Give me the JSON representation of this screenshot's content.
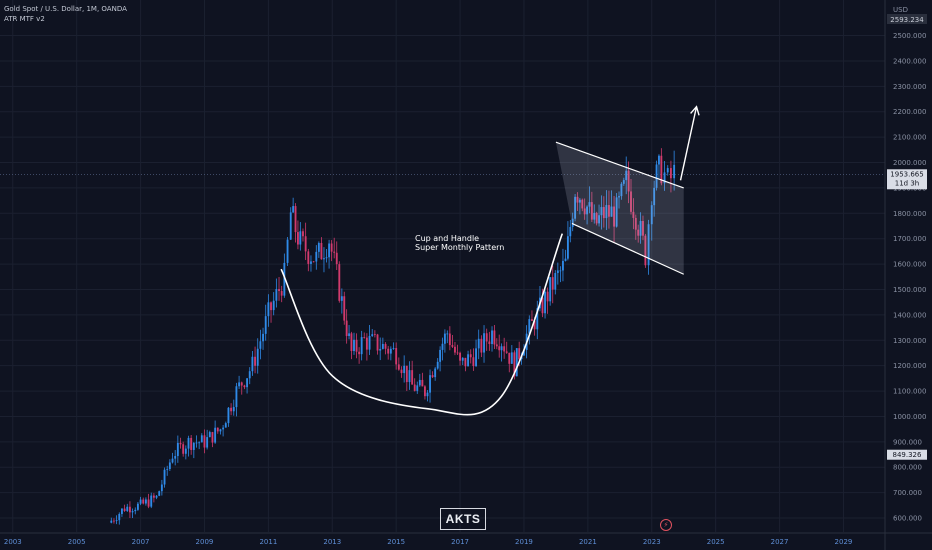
{
  "header": {
    "symbol": "Gold Spot / U.S. Dollar, 1M, OANDA",
    "indicator": "ATR MTF v2"
  },
  "watermark": "AKTS",
  "annotation": [
    "Cup and Handle",
    "Super Monthly Pattern"
  ],
  "price_axis": {
    "currency_label": "USD",
    "top_readout": "2593.234",
    "current_price_label": "1953.665",
    "countdown_label": "11d 3h",
    "lower_readout": "849.326"
  },
  "colors": {
    "background": "#0f1321",
    "bull": "#2f8ae8",
    "bear": "#d23a6d",
    "accent": "#2962ff",
    "axis_text": "#8a91a3",
    "x_ticks": "#5f8fd6"
  },
  "chart_data": {
    "type": "candlestick",
    "title": "Gold Spot / U.S. Dollar, 1M, OANDA",
    "x_ticks": [
      "2003",
      "2005",
      "2007",
      "2009",
      "2011",
      "2013",
      "2015",
      "2017",
      "2019",
      "2021",
      "2023",
      "2025",
      "2027",
      "2029"
    ],
    "y_ticks": [
      600,
      700,
      800,
      900,
      1000,
      1100,
      1200,
      1300,
      1400,
      1500,
      1600,
      1700,
      1800,
      1900,
      2000,
      2100,
      2200,
      2300,
      2400,
      2500
    ],
    "xlim": [
      2002.6,
      2030.3
    ],
    "ylim": [
      545,
      2640
    ],
    "current_price": 1953.665,
    "series": [
      {
        "name": "Gold Spot / U.S. Dollar",
        "x": [
          2006.0,
          2006.5,
          2007.0,
          2007.5,
          2008.0,
          2008.5,
          2009.0,
          2009.5,
          2010.0,
          2010.5,
          2011.0,
          2011.5,
          2011.7,
          2012.0,
          2012.5,
          2012.9,
          2013.3,
          2013.6,
          2014.0,
          2014.5,
          2015.0,
          2015.5,
          2015.9,
          2016.3,
          2016.6,
          2017.0,
          2017.5,
          2018.0,
          2018.3,
          2018.7,
          2019.0,
          2019.5,
          2019.9,
          2020.3,
          2020.6,
          2020.9,
          2021.2,
          2021.5,
          2021.9,
          2022.2,
          2022.5,
          2022.8,
          2023.0,
          2023.3,
          2023.5,
          2023.7
        ],
        "values": [
          580,
          640,
          650,
          680,
          850,
          900,
          900,
          950,
          1100,
          1200,
          1400,
          1550,
          1800,
          1680,
          1620,
          1700,
          1450,
          1250,
          1300,
          1280,
          1250,
          1120,
          1100,
          1250,
          1330,
          1200,
          1250,
          1330,
          1300,
          1200,
          1300,
          1420,
          1520,
          1600,
          1900,
          1850,
          1750,
          1800,
          1800,
          1920,
          1800,
          1640,
          1900,
          1980,
          1920,
          1953.665
        ]
      }
    ],
    "cup_curve": {
      "x": [
        2011.4,
        2013.0,
        2016.0,
        2018.3,
        2020.2
      ],
      "y": [
        1580,
        1160,
        1030,
        1080,
        1720
      ]
    },
    "channel": {
      "upper": {
        "x": [
          2020.0,
          2024.0
        ],
        "y": [
          2080,
          1900
        ]
      },
      "lower": {
        "x": [
          2020.5,
          2024.0
        ],
        "y": [
          1760,
          1560
        ]
      }
    },
    "breakout_arrow": {
      "x": [
        2023.9,
        2024.4
      ],
      "y": [
        1930,
        2220
      ]
    },
    "grid": true,
    "legend": "top-left"
  }
}
